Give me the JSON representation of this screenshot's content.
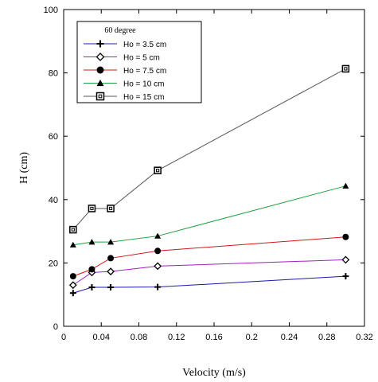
{
  "chart_data": {
    "type": "line",
    "title": "",
    "legend_title": "60 degree",
    "legend_position": "top-left",
    "xlabel": "Velocity (m/s)",
    "ylabel": "H (cm)",
    "xlim": [
      0,
      0.32
    ],
    "ylim": [
      0,
      100
    ],
    "xticks": [
      0,
      0.04,
      0.08,
      0.12,
      0.16,
      0.2,
      0.24,
      0.28,
      0.32
    ],
    "xtick_labels": [
      "0",
      "0.04",
      "0.08",
      "0.12",
      "0.16",
      "0.2",
      "0.24",
      "0.28",
      "0.32"
    ],
    "yticks": [
      0,
      20,
      40,
      60,
      80,
      100
    ],
    "ytick_labels": [
      "0",
      "20",
      "40",
      "60",
      "80",
      "100"
    ],
    "grid": false,
    "series": [
      {
        "name": "Ho = 3.5 cm",
        "color": "#1a1ab0",
        "marker": "plus",
        "x": [
          0.01,
          0.03,
          0.05,
          0.1,
          0.3
        ],
        "y": [
          10.5,
          12.3,
          12.3,
          12.4,
          15.8
        ]
      },
      {
        "name": "Ho = 5 cm",
        "color": "#a020c0",
        "marker": "diamond",
        "x": [
          0.01,
          0.03,
          0.05,
          0.1,
          0.3
        ],
        "y": [
          13.0,
          17.0,
          17.3,
          19.0,
          21.0
        ]
      },
      {
        "name": "Ho = 7.5 cm",
        "color": "#d01818",
        "marker": "circle",
        "x": [
          0.01,
          0.03,
          0.05,
          0.1,
          0.3
        ],
        "y": [
          15.8,
          18.0,
          21.5,
          23.8,
          28.2
        ]
      },
      {
        "name": "Ho = 10 cm",
        "color": "#20a040",
        "marker": "triangle",
        "x": [
          0.01,
          0.03,
          0.05,
          0.1,
          0.3
        ],
        "y": [
          25.7,
          26.6,
          26.6,
          28.5,
          44.3
        ]
      },
      {
        "name": "Ho = 15 cm",
        "color": "#555555",
        "marker": "square",
        "x": [
          0.01,
          0.03,
          0.05,
          0.1,
          0.3
        ],
        "y": [
          30.5,
          37.2,
          37.2,
          49.2,
          81.3
        ]
      }
    ]
  }
}
